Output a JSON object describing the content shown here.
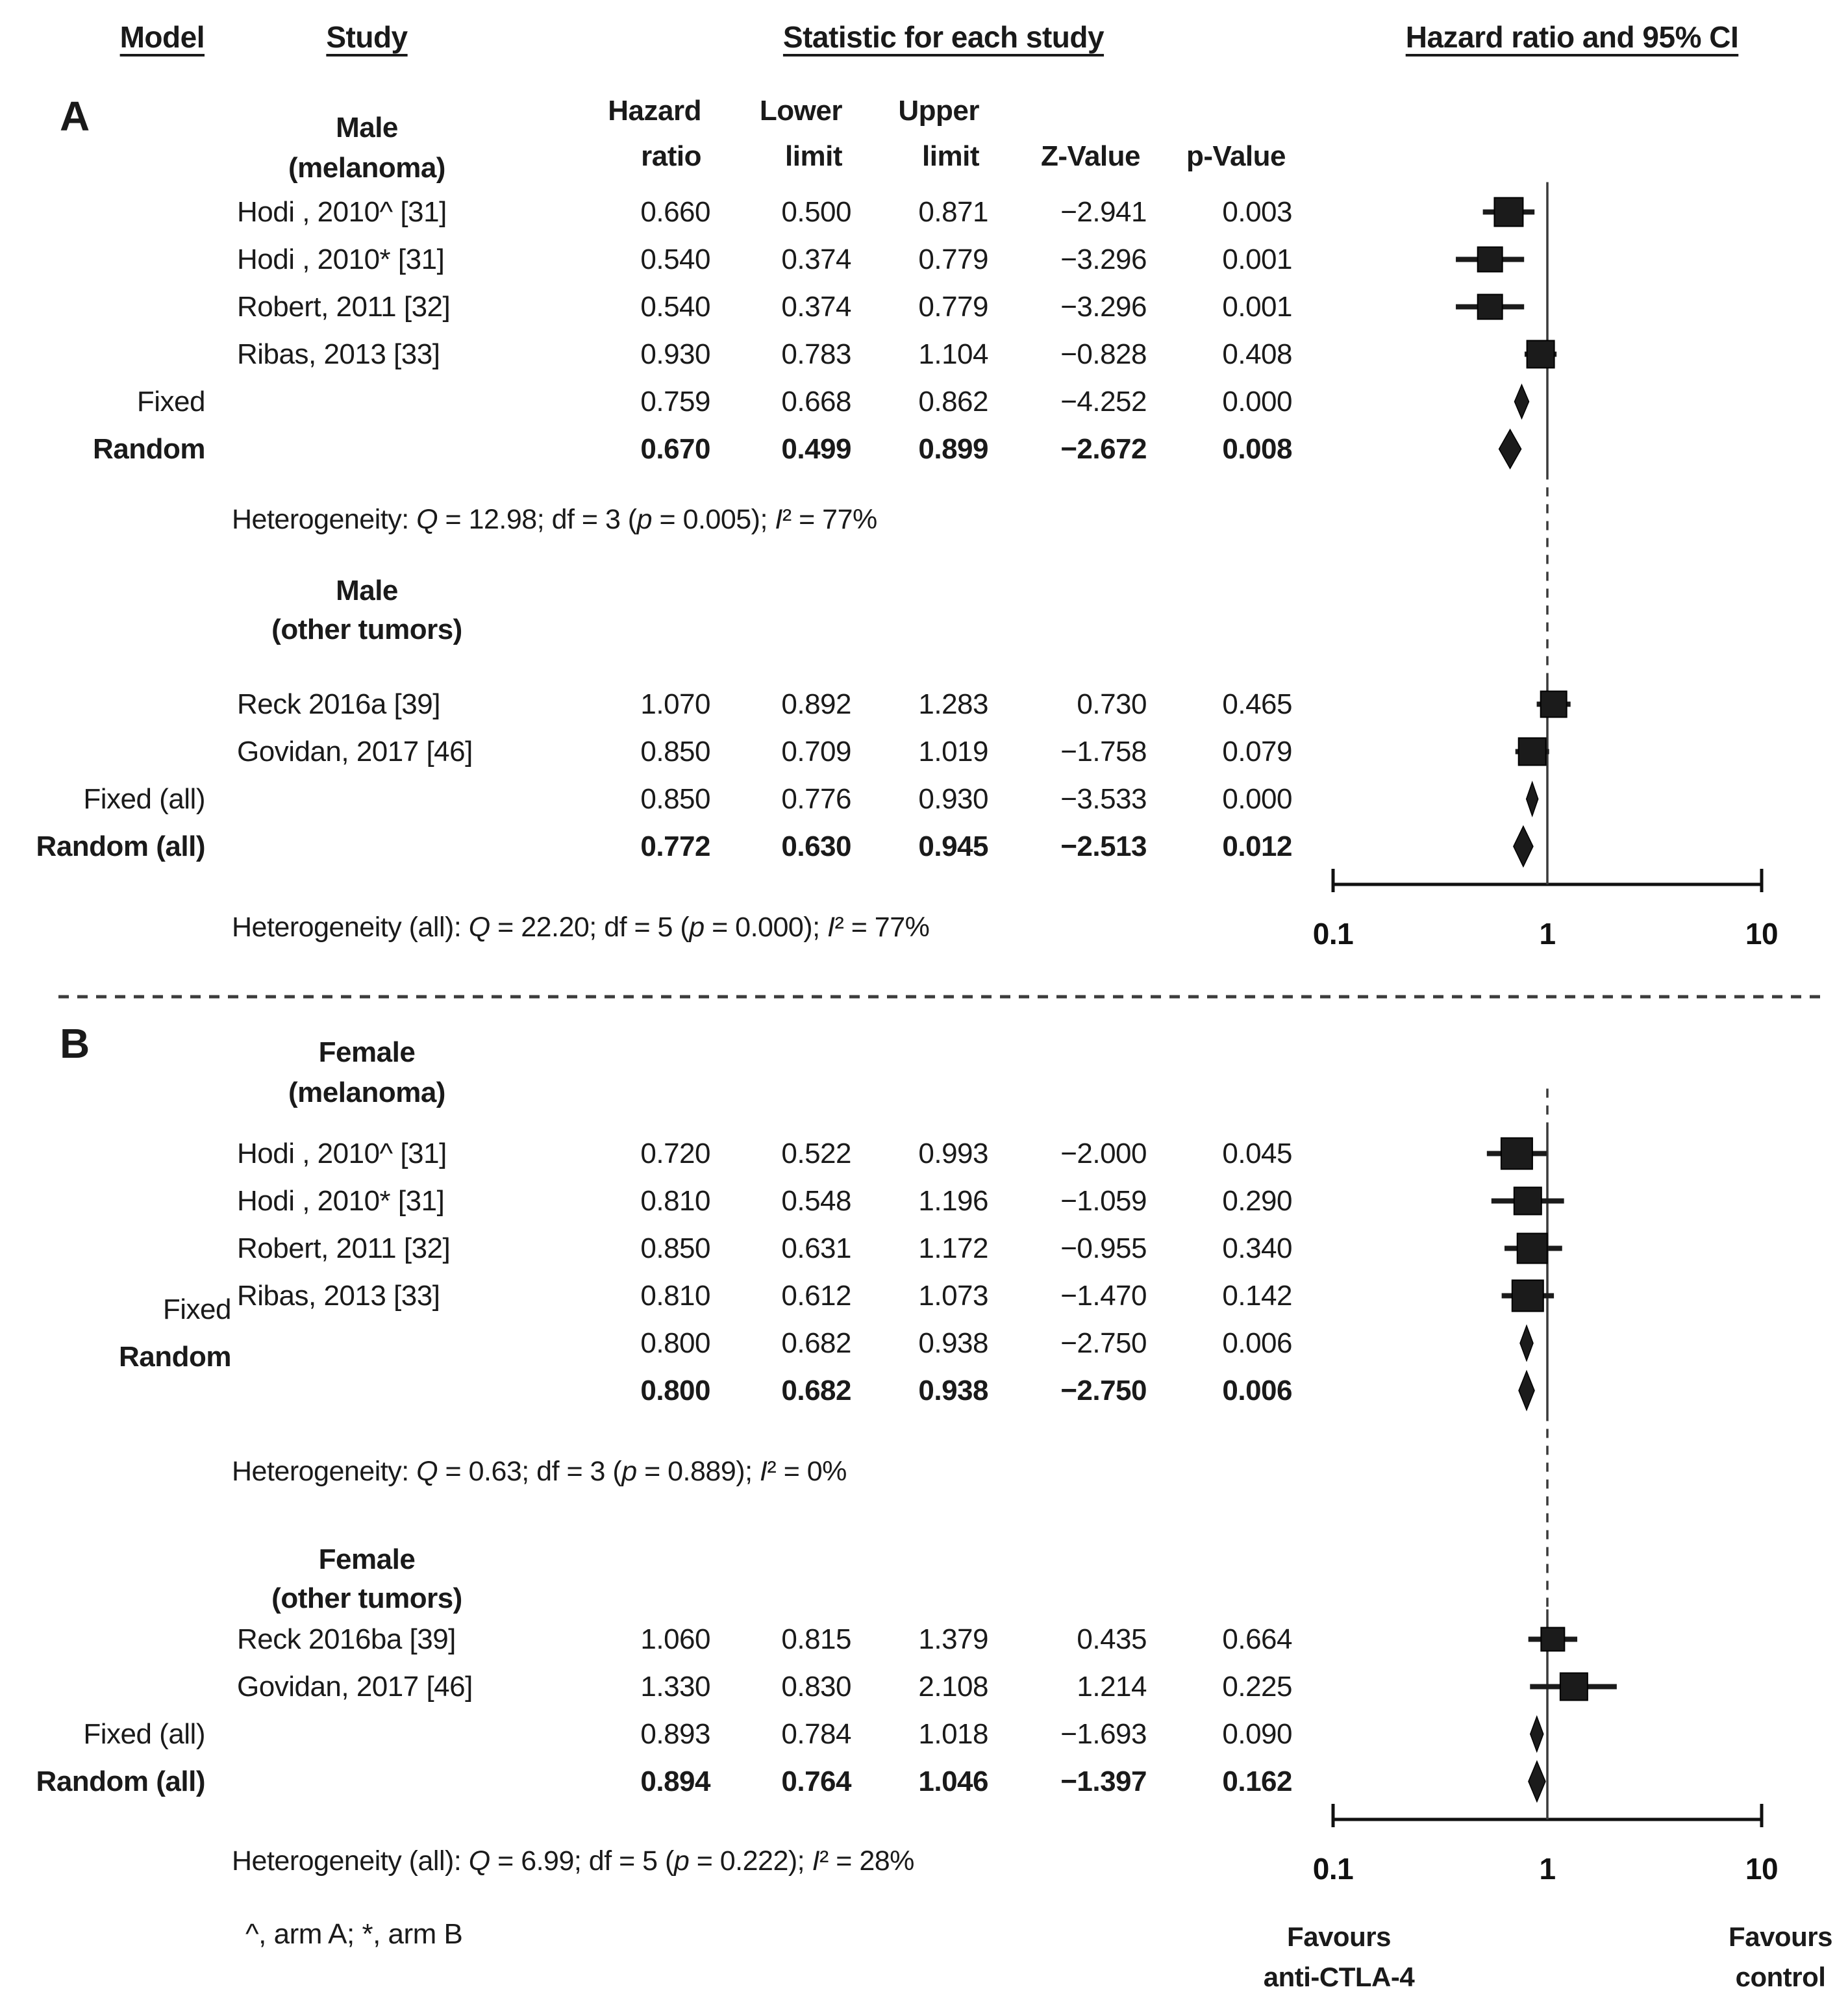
{
  "header": {
    "model": "Model",
    "study": "Study",
    "statistic": "Statistic for each study",
    "plot": "Hazard ratio and 95% CI",
    "columns": [
      {
        "l1": "Hazard",
        "l2": "ratio"
      },
      {
        "l1": "Lower",
        "l2": "limit"
      },
      {
        "l1": "Upper",
        "l2": "limit"
      },
      {
        "l1": "",
        "l2": "Z-Value"
      },
      {
        "l1": "",
        "l2": "p-Value"
      }
    ]
  },
  "axis": {
    "labels": [
      "0.1",
      "1",
      "10"
    ],
    "values": [
      0.1,
      1,
      10
    ],
    "scale": "log10"
  },
  "favours": {
    "left": [
      "Favours",
      "anti-CTLA-4"
    ],
    "right": [
      "Favours",
      "control"
    ]
  },
  "footnote": "^, arm A; *, arm B",
  "colors": {
    "ink": "#1a1a1a",
    "marker": "#1b1b1b",
    "refline": "#3a3a3a"
  },
  "panels": [
    {
      "label": "A",
      "groups": [
        {
          "name": "Male",
          "qualifier": "(melanoma)",
          "heterogeneity": "Heterogeneity: Q = 12.98; df = 3 (p = 0.005); I² = 77%",
          "rows": [
            {
              "model": "",
              "study": "Hodi , 2010^ [31]",
              "hr": "0.660",
              "lower": "0.500",
              "upper": "0.871",
              "z": "-2.941",
              "p": "0.003",
              "marker": {
                "shape": "square",
                "size": 44
              }
            },
            {
              "model": "",
              "study": "Hodi , 2010* [31]",
              "hr": "0.540",
              "lower": "0.374",
              "upper": "0.779",
              "z": "-3.296",
              "p": "0.001",
              "marker": {
                "shape": "square",
                "size": 38
              }
            },
            {
              "model": "",
              "study": "Robert, 2011 [32]",
              "hr": "0.540",
              "lower": "0.374",
              "upper": "0.779",
              "z": "-3.296",
              "p": "0.001",
              "marker": {
                "shape": "square",
                "size": 38
              }
            },
            {
              "model": "",
              "study": "Ribas, 2013 [33]",
              "hr": "0.930",
              "lower": "0.783",
              "upper": "1.104",
              "z": "-0.828",
              "p": "0.408",
              "marker": {
                "shape": "square",
                "size": 42
              }
            },
            {
              "model": "Fixed",
              "study": "",
              "hr": "0.759",
              "lower": "0.668",
              "upper": "0.862",
              "z": "-4.252",
              "p": "0.000",
              "marker": {
                "shape": "diamond",
                "w": 22,
                "h": 52
              }
            },
            {
              "model": "Random",
              "study": "",
              "hr": "0.670",
              "lower": "0.499",
              "upper": "0.899",
              "z": "-2.672",
              "p": "0.008",
              "marker": {
                "shape": "diamond",
                "w": 34,
                "h": 60
              }
            }
          ]
        },
        {
          "name": "Male",
          "qualifier": "(other tumors)",
          "heterogeneity": "Heterogeneity (all): Q = 22.20; df = 5 (p = 0.000); I² = 77%",
          "rows": [
            {
              "model": "",
              "study": "Reck 2016a [39]",
              "hr": "1.070",
              "lower": "0.892",
              "upper": "1.283",
              "z": "0.730",
              "p": "0.465",
              "marker": {
                "shape": "square",
                "size": 40
              }
            },
            {
              "model": "",
              "study": "Govidan, 2017 [46]",
              "hr": "0.850",
              "lower": "0.709",
              "upper": "1.019",
              "z": "-1.758",
              "p": "0.079",
              "marker": {
                "shape": "square",
                "size": 42
              }
            },
            {
              "model": "Fixed (all)",
              "study": "",
              "hr": "0.850",
              "lower": "0.776",
              "upper": "0.930",
              "z": "-3.533",
              "p": "0.000",
              "marker": {
                "shape": "diamond",
                "w": 18,
                "h": 52
              }
            },
            {
              "model": "Random (all)",
              "study": "",
              "hr": "0.772",
              "lower": "0.630",
              "upper": "0.945",
              "z": "-2.513",
              "p": "0.012",
              "marker": {
                "shape": "diamond",
                "w": 30,
                "h": 62
              }
            }
          ]
        }
      ]
    },
    {
      "label": "B",
      "groups": [
        {
          "name": "Female",
          "qualifier": "(melanoma)",
          "heterogeneity": "Heterogeneity: Q = 0.63; df = 3 (p = 0.889); I² = 0%",
          "rows": [
            {
              "model": "",
              "study": "Hodi , 2010^ [31]",
              "hr": "0.720",
              "lower": "0.522",
              "upper": "0.993",
              "z": "-2.000",
              "p": "0.045",
              "marker": {
                "shape": "square",
                "size": 48
              }
            },
            {
              "model": "",
              "study": "Hodi , 2010* [31]",
              "hr": "0.810",
              "lower": "0.548",
              "upper": "1.196",
              "z": "-1.059",
              "p": "0.290",
              "marker": {
                "shape": "square",
                "size": 42
              }
            },
            {
              "model": "",
              "study": "Robert, 2011 [32]",
              "hr": "0.850",
              "lower": "0.631",
              "upper": "1.172",
              "z": "-0.955",
              "p": "0.340",
              "marker": {
                "shape": "square",
                "size": 46
              }
            },
            {
              "model": "",
              "study": "Ribas, 2013 [33]",
              "hr": "0.810",
              "lower": "0.612",
              "upper": "1.073",
              "z": "-1.470",
              "p": "0.142",
              "marker": {
                "shape": "square",
                "size": 48
              }
            },
            {
              "model": "Fixed",
              "study": "",
              "hr": "0.800",
              "lower": "0.682",
              "upper": "0.938",
              "z": "-2.750",
              "p": "0.006",
              "marker": {
                "shape": "diamond",
                "w": 20,
                "h": 54
              }
            },
            {
              "model": "Random",
              "study": "",
              "hr": "0.800",
              "lower": "0.682",
              "upper": "0.938",
              "z": "-2.750",
              "p": "0.006",
              "marker": {
                "shape": "diamond",
                "w": 24,
                "h": 60
              }
            }
          ]
        },
        {
          "name": "Female",
          "qualifier": "(other tumors)",
          "heterogeneity": "Heterogeneity (all): Q = 6.99; df = 5 (p = 0.222); I² = 28%",
          "rows": [
            {
              "model": "",
              "study": "Reck 2016ba [39]",
              "hr": "1.060",
              "lower": "0.815",
              "upper": "1.379",
              "z": "0.435",
              "p": "0.664",
              "marker": {
                "shape": "square",
                "size": 36
              }
            },
            {
              "model": "",
              "study": "Govidan, 2017 [46]",
              "hr": "1.330",
              "lower": "0.830",
              "upper": "2.108",
              "z": "1.214",
              "p": "0.225",
              "marker": {
                "shape": "square",
                "size": 42
              }
            },
            {
              "model": "Fixed (all)",
              "study": "",
              "hr": "0.893",
              "lower": "0.784",
              "upper": "1.018",
              "z": "-1.693",
              "p": "0.090",
              "marker": {
                "shape": "diamond",
                "w": 20,
                "h": 54
              }
            },
            {
              "model": "Random (all)",
              "study": "",
              "hr": "0.894",
              "lower": "0.764",
              "upper": "1.046",
              "z": "-1.397",
              "p": "0.162",
              "marker": {
                "shape": "diamond",
                "w": 26,
                "h": 62
              }
            }
          ]
        }
      ]
    }
  ],
  "chart_data": {
    "type": "forest",
    "x_axis": {
      "scale": "log10",
      "ticks": [
        0.1,
        1,
        10
      ],
      "reference_line": 1,
      "label_left": "Favours anti-CTLA-4",
      "label_right": "Favours control"
    },
    "panels": [
      {
        "panel": "A",
        "groups": [
          {
            "group": "Male (melanoma)",
            "studies": [
              {
                "name": "Hodi , 2010^ [31]",
                "hr": 0.66,
                "lower": 0.5,
                "upper": 0.871,
                "z": -2.941,
                "p": 0.003
              },
              {
                "name": "Hodi , 2010* [31]",
                "hr": 0.54,
                "lower": 0.374,
                "upper": 0.779,
                "z": -3.296,
                "p": 0.001
              },
              {
                "name": "Robert, 2011 [32]",
                "hr": 0.54,
                "lower": 0.374,
                "upper": 0.779,
                "z": -3.296,
                "p": 0.001
              },
              {
                "name": "Ribas, 2013 [33]",
                "hr": 0.93,
                "lower": 0.783,
                "upper": 1.104,
                "z": -0.828,
                "p": 0.408
              }
            ],
            "pooled": [
              {
                "model": "Fixed",
                "hr": 0.759,
                "lower": 0.668,
                "upper": 0.862,
                "z": -4.252,
                "p": 0.0
              },
              {
                "model": "Random",
                "hr": 0.67,
                "lower": 0.499,
                "upper": 0.899,
                "z": -2.672,
                "p": 0.008
              }
            ],
            "heterogeneity": {
              "Q": 12.98,
              "df": 3,
              "p": 0.005,
              "I2_pct": 77
            }
          },
          {
            "group": "Male (other tumors)",
            "studies": [
              {
                "name": "Reck 2016a [39]",
                "hr": 1.07,
                "lower": 0.892,
                "upper": 1.283,
                "z": 0.73,
                "p": 0.465
              },
              {
                "name": "Govidan, 2017 [46]",
                "hr": 0.85,
                "lower": 0.709,
                "upper": 1.019,
                "z": -1.758,
                "p": 0.079
              }
            ],
            "pooled": [
              {
                "model": "Fixed (all)",
                "hr": 0.85,
                "lower": 0.776,
                "upper": 0.93,
                "z": -3.533,
                "p": 0.0
              },
              {
                "model": "Random (all)",
                "hr": 0.772,
                "lower": 0.63,
                "upper": 0.945,
                "z": -2.513,
                "p": 0.012
              }
            ],
            "heterogeneity": {
              "Q": 22.2,
              "df": 5,
              "p": 0.0,
              "I2_pct": 77
            }
          }
        ]
      },
      {
        "panel": "B",
        "groups": [
          {
            "group": "Female (melanoma)",
            "studies": [
              {
                "name": "Hodi , 2010^ [31]",
                "hr": 0.72,
                "lower": 0.522,
                "upper": 0.993,
                "z": -2.0,
                "p": 0.045
              },
              {
                "name": "Hodi , 2010* [31]",
                "hr": 0.81,
                "lower": 0.548,
                "upper": 1.196,
                "z": -1.059,
                "p": 0.29
              },
              {
                "name": "Robert, 2011 [32]",
                "hr": 0.85,
                "lower": 0.631,
                "upper": 1.172,
                "z": -0.955,
                "p": 0.34
              },
              {
                "name": "Ribas, 2013 [33]",
                "hr": 0.81,
                "lower": 0.612,
                "upper": 1.073,
                "z": -1.47,
                "p": 0.142
              }
            ],
            "pooled": [
              {
                "model": "Fixed",
                "hr": 0.8,
                "lower": 0.682,
                "upper": 0.938,
                "z": -2.75,
                "p": 0.006
              },
              {
                "model": "Random",
                "hr": 0.8,
                "lower": 0.682,
                "upper": 0.938,
                "z": -2.75,
                "p": 0.006
              }
            ],
            "heterogeneity": {
              "Q": 0.63,
              "df": 3,
              "p": 0.889,
              "I2_pct": 0
            }
          },
          {
            "group": "Female (other tumors)",
            "studies": [
              {
                "name": "Reck 2016ba [39]",
                "hr": 1.06,
                "lower": 0.815,
                "upper": 1.379,
                "z": 0.435,
                "p": 0.664
              },
              {
                "name": "Govidan, 2017 [46]",
                "hr": 1.33,
                "lower": 0.83,
                "upper": 2.108,
                "z": 1.214,
                "p": 0.225
              }
            ],
            "pooled": [
              {
                "model": "Fixed (all)",
                "hr": 0.893,
                "lower": 0.784,
                "upper": 1.018,
                "z": -1.693,
                "p": 0.09
              },
              {
                "model": "Random (all)",
                "hr": 0.894,
                "lower": 0.764,
                "upper": 1.046,
                "z": -1.397,
                "p": 0.162
              }
            ],
            "heterogeneity": {
              "Q": 6.99,
              "df": 5,
              "p": 0.222,
              "I2_pct": 28
            }
          }
        ]
      }
    ]
  }
}
